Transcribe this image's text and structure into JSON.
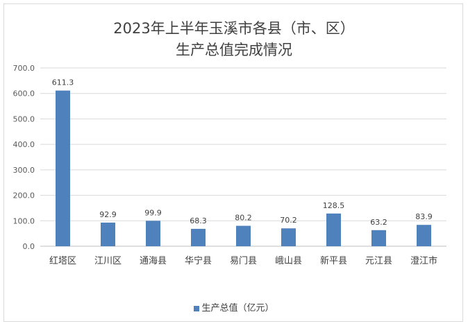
{
  "chart_data": {
    "type": "bar",
    "title": "2023年上半年玉溪市各县（市、区）",
    "subtitle": "生产总值完成情况",
    "categories": [
      "红塔区",
      "江川区",
      "通海县",
      "华宁县",
      "易门县",
      "峨山县",
      "新平县",
      "元江县",
      "澄江市"
    ],
    "series": [
      {
        "name": "生产总值（亿元）",
        "values": [
          611.3,
          92.9,
          99.9,
          68.3,
          80.2,
          70.2,
          128.5,
          63.2,
          83.9
        ],
        "color": "#4f81bd"
      }
    ],
    "data_labels": [
      "611.3",
      "92.9",
      "99.9",
      "68.3",
      "80.2",
      "70.2",
      "128.5",
      "63.2",
      "83.9"
    ],
    "y_ticks": [
      "0.0",
      "100.0",
      "200.0",
      "300.0",
      "400.0",
      "500.0",
      "600.0",
      "700.0"
    ],
    "ylim": [
      0,
      700
    ],
    "grid": true,
    "legend_position": "bottom"
  }
}
